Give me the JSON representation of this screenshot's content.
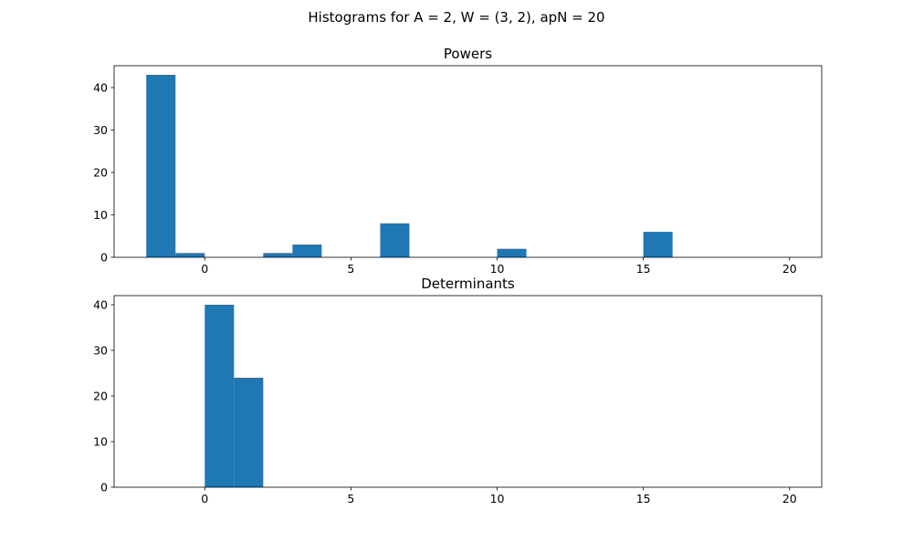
{
  "figure": {
    "title": "Histograms for A = 2, W = (3, 2), apN = 20"
  },
  "chart_data": [
    {
      "type": "bar",
      "title": "Powers",
      "xlabel": "",
      "ylabel": "",
      "xlim": [
        -3.1,
        21.1
      ],
      "ylim": [
        0,
        45.15
      ],
      "xticks": [
        0,
        5,
        10,
        15,
        20
      ],
      "yticks": [
        0,
        10,
        20,
        30,
        40
      ],
      "bar_color": "#1f77b4",
      "bins": [
        {
          "x0": -2,
          "x1": -1,
          "value": 43
        },
        {
          "x0": -1,
          "x1": 0,
          "value": 1
        },
        {
          "x0": 2,
          "x1": 3,
          "value": 1
        },
        {
          "x0": 3,
          "x1": 4,
          "value": 3
        },
        {
          "x0": 6,
          "x1": 7,
          "value": 8
        },
        {
          "x0": 10,
          "x1": 11,
          "value": 2
        },
        {
          "x0": 15,
          "x1": 16,
          "value": 6
        }
      ]
    },
    {
      "type": "bar",
      "title": "Determinants",
      "xlabel": "",
      "ylabel": "",
      "xlim": [
        -3.1,
        21.1
      ],
      "ylim": [
        0,
        42
      ],
      "xticks": [
        0,
        5,
        10,
        15,
        20
      ],
      "yticks": [
        0,
        10,
        20,
        30,
        40
      ],
      "bar_color": "#1f77b4",
      "bins": [
        {
          "x0": 0,
          "x1": 1,
          "value": 40
        },
        {
          "x0": 1,
          "x1": 2,
          "value": 24
        }
      ]
    }
  ]
}
